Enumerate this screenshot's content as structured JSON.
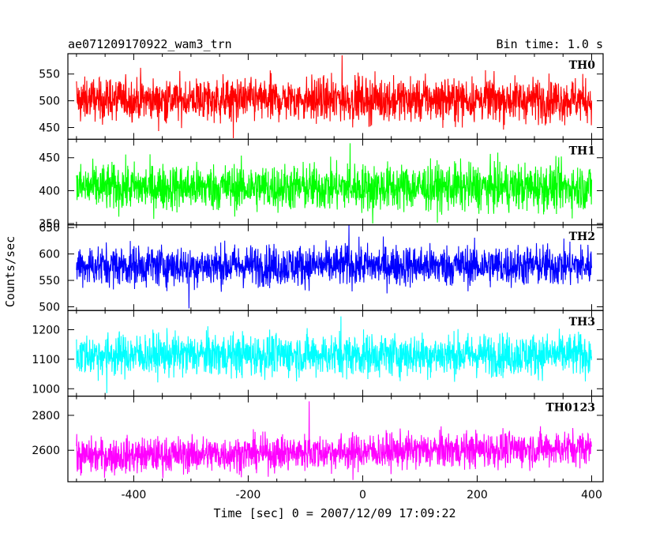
{
  "chart_data": {
    "type": "line",
    "title_left": "ae071209170922_wam3_trn",
    "title_right": "Bin time: 1.0 s",
    "xlabel": "Time [sec] 0 = 2007/12/09 17:09:22",
    "ylabel": "Counts/sec",
    "xlim": [
      -515,
      420
    ],
    "x_range": [
      -500,
      400
    ],
    "x_ticks": [
      -400,
      -200,
      0,
      200,
      400
    ],
    "shared_x_axis": true,
    "panels": [
      {
        "name": "TH0",
        "color": "#ff0000",
        "ylim": [
          428,
          588
        ],
        "y_ticks": [
          450,
          500,
          550
        ],
        "mean": 502,
        "amplitude": 48,
        "extreme_min": 430,
        "extreme_max": 585,
        "trend": 0
      },
      {
        "name": "TH1",
        "color": "#00ff00",
        "ylim": [
          348,
          478
        ],
        "y_ticks": [
          350,
          400,
          450
        ],
        "mean": 405,
        "amplitude": 42,
        "extreme_min": 350,
        "extreme_max": 472,
        "trend": 0
      },
      {
        "name": "TH2",
        "color": "#0000ff",
        "ylim": [
          493,
          655
        ],
        "y_ticks": [
          500,
          550,
          600,
          650
        ],
        "mean": 578,
        "amplitude": 46,
        "extreme_min": 497,
        "extreme_max": 655,
        "trend": 0
      },
      {
        "name": "TH3",
        "color": "#00ffff",
        "ylim": [
          975,
          1265
        ],
        "y_ticks": [
          1000,
          1100,
          1200
        ],
        "mean": 1115,
        "amplitude": 85,
        "extreme_min": 985,
        "extreme_max": 1245,
        "trend": 0
      },
      {
        "name": "TH0123",
        "color": "#ff00ff",
        "ylim": [
          2420,
          2910
        ],
        "y_ticks": [
          2600,
          2800
        ],
        "mean": 2590,
        "amplitude": 120,
        "extreme_min": 2430,
        "extreme_max": 2880,
        "trend": 50
      }
    ]
  }
}
